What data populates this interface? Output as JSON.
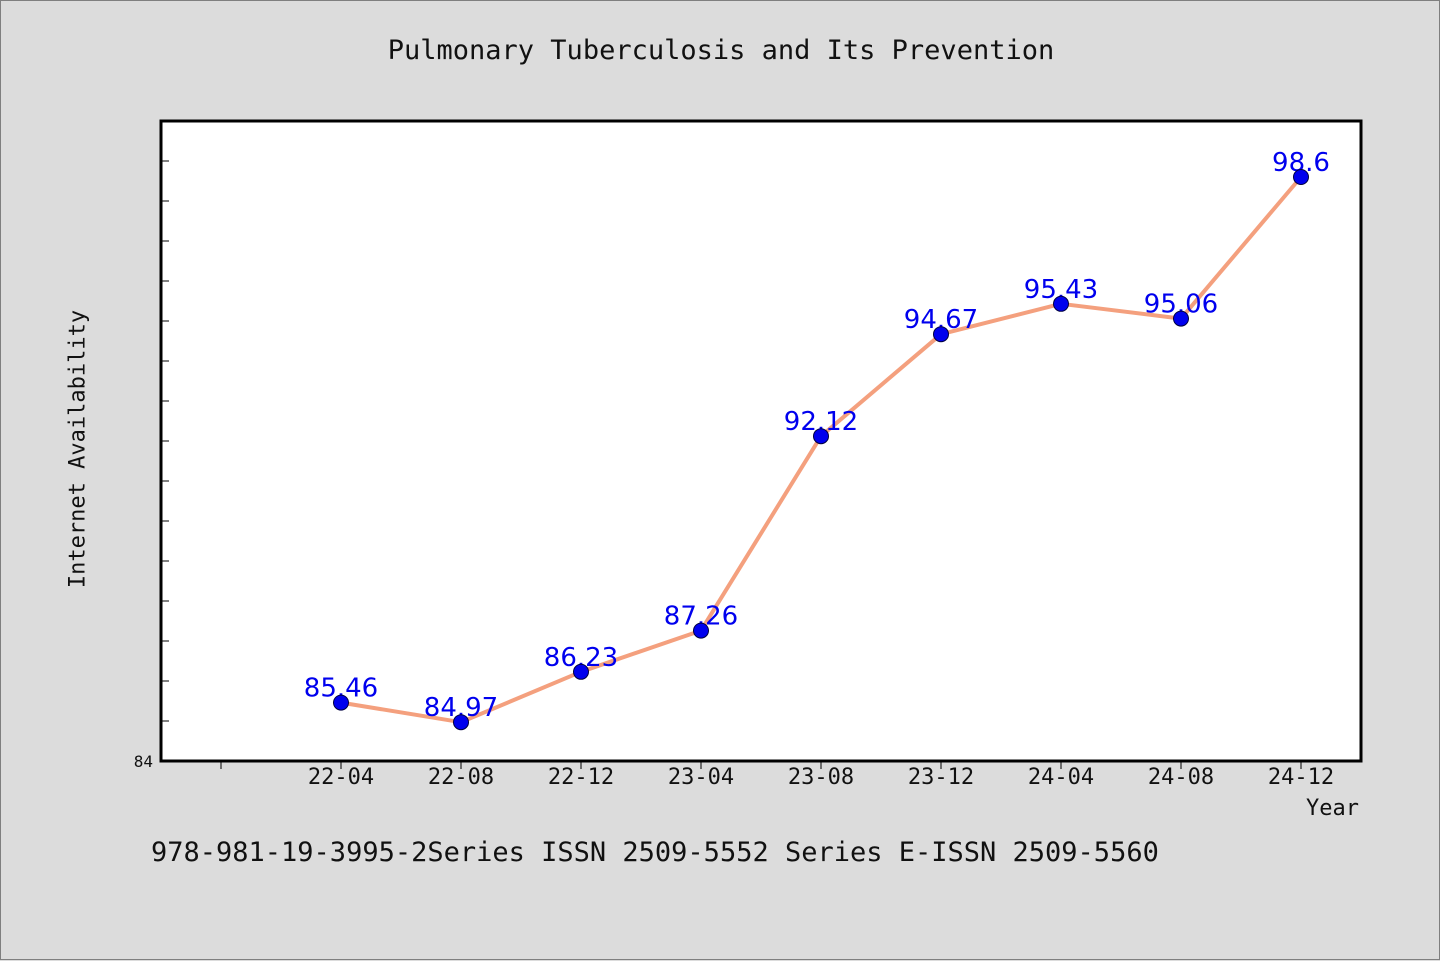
{
  "chart_data": {
    "type": "line",
    "title": "Pulmonary Tuberculosis and Its Prevention",
    "xlabel": "Year",
    "ylabel": "Internet Availability",
    "categories": [
      "22-04",
      "22-08",
      "22-12",
      "23-04",
      "23-08",
      "23-12",
      "24-04",
      "24-08",
      "24-12"
    ],
    "series": [
      {
        "values": [
          85.46,
          84.97,
          86.23,
          87.26,
          92.12,
          94.67,
          95.43,
          95.06,
          98.6
        ]
      }
    ],
    "data_labels": [
      "85.46",
      "84.97",
      "86.23",
      "87.26",
      "92.12",
      "94.67",
      "95.43",
      "95.06",
      "98.6"
    ],
    "y_tick_labels": [
      "84"
    ],
    "ylim": [
      84,
      100
    ],
    "grid": false,
    "line_color": "#f4a07e",
    "marker_color": "#0000ee",
    "label_color": "#0000ee"
  },
  "footer": {
    "text": "978-981-19-3995-2Series ISSN 2509-5552 Series E-ISSN 2509-5560"
  }
}
